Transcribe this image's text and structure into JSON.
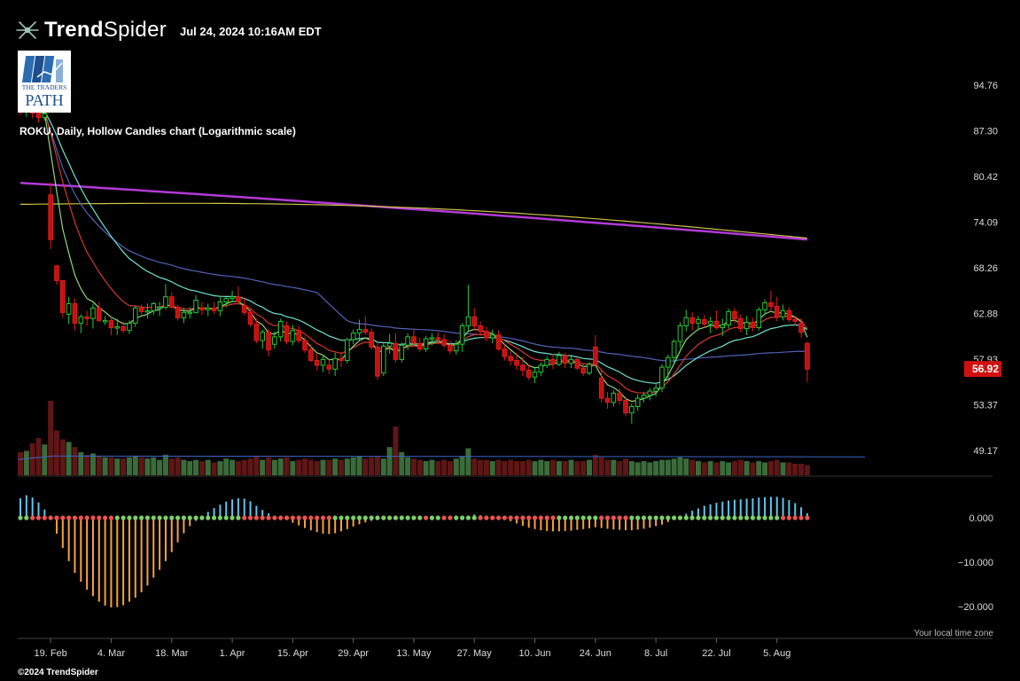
{
  "header": {
    "brand_bold": "Trend",
    "brand_light": "Spider",
    "timestamp": "Jul 24, 2024 10:16AM EDT",
    "logo_line1": "THE TRADERS",
    "logo_line2": "PATH",
    "logo_icon": "books-icon"
  },
  "chart_data": {
    "type": "candlestick",
    "title": "ROKU, Daily, Hollow Candles chart (Logarithmic scale)",
    "y_scale": "log",
    "price_axis_labels": [
      "94.76",
      "87.30",
      "80.42",
      "74.09",
      "68.26",
      "62.88",
      "57.93",
      "53.37",
      "49.17"
    ],
    "last_price": "56.92",
    "x_tick_labels": [
      "19. Feb",
      "4. Mar",
      "18. Mar",
      "1. Apr",
      "15. Apr",
      "29. Apr",
      "13. May",
      "27. May",
      "10. Jun",
      "24. Jun",
      "8. Jul",
      "22. Jul",
      "5. Aug"
    ],
    "start_date": "2024-02-12",
    "candles": [
      [
        91.2,
        92.5,
        89.8,
        90.5
      ],
      [
        90.5,
        92.8,
        89.5,
        91.8
      ],
      [
        91.8,
        92.6,
        89.3,
        90.1
      ],
      [
        90.1,
        91.2,
        88.6,
        89.4
      ],
      [
        89.4,
        90.9,
        88.9,
        90.0
      ],
      [
        77.8,
        79.5,
        70.6,
        71.8
      ],
      [
        68.5,
        68.6,
        66.2,
        66.7
      ],
      [
        66.7,
        66.8,
        62.4,
        63.0
      ],
      [
        62.8,
        64.8,
        61.7,
        64.0
      ],
      [
        64.0,
        64.6,
        61.0,
        61.8
      ],
      [
        61.8,
        62.8,
        60.7,
        62.5
      ],
      [
        62.5,
        63.2,
        61.5,
        62.3
      ],
      [
        62.3,
        64.0,
        61.2,
        63.5
      ],
      [
        63.5,
        64.2,
        61.9,
        62.1
      ],
      [
        62.1,
        62.6,
        61.6,
        62.1
      ],
      [
        62.1,
        62.6,
        60.5,
        61.3
      ],
      [
        61.3,
        62.3,
        60.5,
        61.4
      ],
      [
        61.4,
        62.0,
        60.7,
        61.0
      ],
      [
        61.0,
        62.1,
        60.6,
        61.8
      ],
      [
        61.8,
        63.8,
        61.4,
        63.5
      ],
      [
        63.5,
        63.9,
        62.6,
        63.1
      ],
      [
        63.1,
        64.0,
        62.3,
        63.2
      ],
      [
        63.2,
        64.2,
        62.7,
        64.0
      ],
      [
        63.6,
        64.2,
        62.6,
        63.6
      ],
      [
        63.6,
        66.3,
        63.3,
        64.8
      ],
      [
        64.8,
        65.3,
        63.4,
        63.6
      ],
      [
        63.6,
        63.9,
        62.1,
        62.4
      ],
      [
        62.4,
        63.5,
        61.8,
        63.0
      ],
      [
        63.0,
        63.6,
        62.3,
        63.0
      ],
      [
        63.0,
        65.0,
        62.9,
        64.4
      ],
      [
        63.5,
        64.2,
        62.7,
        63.3
      ],
      [
        63.3,
        64.0,
        62.6,
        63.5
      ],
      [
        63.5,
        64.2,
        62.8,
        63.2
      ],
      [
        63.2,
        64.9,
        62.6,
        64.2
      ],
      [
        64.2,
        64.8,
        63.6,
        64.6
      ],
      [
        64.6,
        65.5,
        64.2,
        64.8
      ],
      [
        64.8,
        66.0,
        64.1,
        64.2
      ],
      [
        63.8,
        64.7,
        62.7,
        63.0
      ],
      [
        63.0,
        63.5,
        61.4,
        61.7
      ],
      [
        61.7,
        62.3,
        59.6,
        59.9
      ],
      [
        59.9,
        61.1,
        59.0,
        60.8
      ],
      [
        60.8,
        61.2,
        58.2,
        58.9
      ],
      [
        59.5,
        60.9,
        59.0,
        60.3
      ],
      [
        60.3,
        62.3,
        59.8,
        62.0
      ],
      [
        61.5,
        62.0,
        59.5,
        59.8
      ],
      [
        59.8,
        61.6,
        59.4,
        61.0
      ],
      [
        61.0,
        61.5,
        59.6,
        59.9
      ],
      [
        59.9,
        60.3,
        58.6,
        58.9
      ],
      [
        58.9,
        59.5,
        57.6,
        57.8
      ],
      [
        57.8,
        58.5,
        56.8,
        57.3
      ],
      [
        57.3,
        58.4,
        56.6,
        57.9
      ],
      [
        57.3,
        57.9,
        56.4,
        56.9
      ],
      [
        56.9,
        58.6,
        56.2,
        58.0
      ],
      [
        58.0,
        58.7,
        57.1,
        57.8
      ],
      [
        57.8,
        60.2,
        57.5,
        60.0
      ],
      [
        60.0,
        61.1,
        59.5,
        60.7
      ],
      [
        60.7,
        62.2,
        59.9,
        61.1
      ],
      [
        61.1,
        62.6,
        60.5,
        60.8
      ],
      [
        60.8,
        61.2,
        58.9,
        59.2
      ],
      [
        59.2,
        59.7,
        55.8,
        56.2
      ],
      [
        56.5,
        59.6,
        56.2,
        59.3
      ],
      [
        59.3,
        60.6,
        58.5,
        59.6
      ],
      [
        59.6,
        60.7,
        57.6,
        57.9
      ],
      [
        57.9,
        59.7,
        57.6,
        59.4
      ],
      [
        59.4,
        60.7,
        58.9,
        60.3
      ],
      [
        60.3,
        61.2,
        59.2,
        59.6
      ],
      [
        59.6,
        60.2,
        58.7,
        59.0
      ],
      [
        59.0,
        60.4,
        58.7,
        60.1
      ],
      [
        60.1,
        60.7,
        59.4,
        60.2
      ],
      [
        60.2,
        60.8,
        59.5,
        60.0
      ],
      [
        60.0,
        60.6,
        59.1,
        59.4
      ],
      [
        59.4,
        59.9,
        58.5,
        58.8
      ],
      [
        58.8,
        59.9,
        58.4,
        59.5
      ],
      [
        59.5,
        61.8,
        58.7,
        61.5
      ],
      [
        61.5,
        66.2,
        61.0,
        62.5
      ],
      [
        62.5,
        63.5,
        61.0,
        61.5
      ],
      [
        61.5,
        62.0,
        60.4,
        60.9
      ],
      [
        60.9,
        61.4,
        59.8,
        60.2
      ],
      [
        60.2,
        61.1,
        59.6,
        60.5
      ],
      [
        60.5,
        61.0,
        58.8,
        59.0
      ],
      [
        59.0,
        59.5,
        57.8,
        58.2
      ],
      [
        58.2,
        58.8,
        57.3,
        57.8
      ],
      [
        57.8,
        58.6,
        56.8,
        57.3
      ],
      [
        57.3,
        58.2,
        56.2,
        56.8
      ],
      [
        56.8,
        57.4,
        55.8,
        56.1
      ],
      [
        56.1,
        57.0,
        55.5,
        56.6
      ],
      [
        56.6,
        57.6,
        56.2,
        57.3
      ],
      [
        57.3,
        58.2,
        57.0,
        57.9
      ],
      [
        57.9,
        58.5,
        56.9,
        57.4
      ],
      [
        57.4,
        58.7,
        57.2,
        58.3
      ],
      [
        58.3,
        58.6,
        57.0,
        57.5
      ],
      [
        57.5,
        58.4,
        57.0,
        57.9
      ],
      [
        57.9,
        58.3,
        56.8,
        57.0
      ],
      [
        57.0,
        57.5,
        56.2,
        56.5
      ],
      [
        56.5,
        57.6,
        56.3,
        57.4
      ],
      [
        59.2,
        60.5,
        57.2,
        57.4
      ],
      [
        56.0,
        56.8,
        53.6,
        54.0
      ],
      [
        54.0,
        54.6,
        53.0,
        53.6
      ],
      [
        53.6,
        54.8,
        53.2,
        54.5
      ],
      [
        54.5,
        55.0,
        53.4,
        53.8
      ],
      [
        53.8,
        54.2,
        52.3,
        52.6
      ],
      [
        52.6,
        53.5,
        51.6,
        53.2
      ],
      [
        53.2,
        54.4,
        52.8,
        54.0
      ],
      [
        54.0,
        54.6,
        53.6,
        54.3
      ],
      [
        54.3,
        55.0,
        53.8,
        54.7
      ],
      [
        54.7,
        55.4,
        54.2,
        55.0
      ],
      [
        55.0,
        57.4,
        54.6,
        57.1
      ],
      [
        57.1,
        58.4,
        56.0,
        58.1
      ],
      [
        58.1,
        60.0,
        57.4,
        59.8
      ],
      [
        59.8,
        61.9,
        59.1,
        61.5
      ],
      [
        61.5,
        63.3,
        60.9,
        62.4
      ],
      [
        62.4,
        63.0,
        61.0,
        61.8
      ],
      [
        61.8,
        62.6,
        61.0,
        62.2
      ],
      [
        62.2,
        62.7,
        61.3,
        61.7
      ],
      [
        61.7,
        62.5,
        60.7,
        62.0
      ],
      [
        62.0,
        63.2,
        61.1,
        61.3
      ],
      [
        61.3,
        62.3,
        60.4,
        61.6
      ],
      [
        61.6,
        63.4,
        61.2,
        63.1
      ],
      [
        63.1,
        63.5,
        61.8,
        62.3
      ],
      [
        62.3,
        62.8,
        60.8,
        61.2
      ],
      [
        61.2,
        62.6,
        60.5,
        61.9
      ],
      [
        61.9,
        62.4,
        60.9,
        61.3
      ],
      [
        61.3,
        63.6,
        61.0,
        63.3
      ],
      [
        63.3,
        64.5,
        62.7,
        64.1
      ],
      [
        64.1,
        65.5,
        63.2,
        63.7
      ],
      [
        63.7,
        64.8,
        62.0,
        62.5
      ],
      [
        62.5,
        63.9,
        62.1,
        63.2
      ],
      [
        63.2,
        63.6,
        61.9,
        62.2
      ],
      [
        62.2,
        62.6,
        61.5,
        62.0
      ],
      [
        61.8,
        62.3,
        60.2,
        60.8
      ],
      [
        59.6,
        59.8,
        55.6,
        56.9
      ]
    ],
    "volume": [
      18,
      19,
      25,
      29,
      24,
      58,
      35,
      28,
      26,
      22,
      18,
      16,
      17,
      15,
      14,
      14,
      13,
      13,
      14,
      15,
      14,
      13,
      14,
      12,
      16,
      13,
      14,
      12,
      11,
      12,
      11,
      12,
      10,
      11,
      13,
      12,
      11,
      12,
      13,
      15,
      12,
      14,
      12,
      13,
      14,
      11,
      12,
      13,
      12,
      11,
      12,
      12,
      13,
      12,
      13,
      14,
      15,
      13,
      14,
      15,
      13,
      22,
      38,
      18,
      14,
      13,
      12,
      11,
      12,
      11,
      12,
      11,
      13,
      15,
      21,
      13,
      12,
      12,
      11,
      12,
      11,
      12,
      11,
      11,
      12,
      11,
      12,
      11,
      12,
      11,
      11,
      12,
      11,
      11,
      12,
      16,
      14,
      12,
      12,
      11,
      13,
      11,
      10,
      11,
      10,
      11,
      12,
      12,
      13,
      14,
      13,
      12,
      11,
      10,
      11,
      10,
      11,
      10,
      11,
      12,
      11,
      10,
      11,
      10,
      11,
      12,
      10,
      10,
      9,
      9,
      8
    ],
    "volume_avg": 15,
    "macd_y_labels": [
      "0.000",
      "−10.000",
      "−20.000"
    ],
    "macd_range": [
      -24.5,
      6.8
    ],
    "macd_histogram": [
      5.2,
      6.0,
      5.4,
      4.1,
      2.2,
      -0.5,
      -4.2,
      -8.0,
      -11.5,
      -14.6,
      -17.0,
      -19.1,
      -20.8,
      -22.3,
      -23.3,
      -23.8,
      -23.7,
      -23.2,
      -22.3,
      -21.2,
      -19.8,
      -18.0,
      -15.9,
      -13.8,
      -11.5,
      -9.1,
      -6.5,
      -4.1,
      -2.2,
      -0.8,
      0.6,
      1.6,
      2.6,
      3.5,
      4.3,
      4.9,
      5.2,
      5.1,
      4.4,
      3.2,
      2.1,
      1.2,
      0.4,
      -0.1,
      -0.6,
      -1.3,
      -2.0,
      -2.7,
      -3.3,
      -3.8,
      -4.2,
      -4.3,
      -4.1,
      -3.6,
      -3.0,
      -2.3,
      -1.7,
      -1.2,
      -0.8,
      -0.6,
      -0.5,
      -0.4,
      -0.4,
      -0.4,
      -0.3,
      -0.3,
      -0.2,
      -0.3,
      -0.2,
      -0.1,
      -0.2,
      -0.3,
      -0.2,
      -0.1,
      0.6,
      0.9,
      0.7,
      0.6,
      0.5,
      0.3,
      -0.3,
      -0.9,
      -1.5,
      -2.1,
      -2.6,
      -3.0,
      -3.3,
      -3.5,
      -3.6,
      -3.6,
      -3.5,
      -3.4,
      -3.2,
      -3.0,
      -2.8,
      -2.5,
      -2.7,
      -2.9,
      -3.1,
      -3.2,
      -3.3,
      -3.3,
      -3.1,
      -2.9,
      -2.6,
      -2.2,
      -1.8,
      -1.1,
      -0.4,
      0.3,
      1.1,
      1.9,
      2.5,
      3.2,
      3.6,
      4.0,
      4.3,
      4.6,
      4.8,
      4.9,
      5.1,
      5.2,
      5.4,
      5.5,
      5.6,
      5.6,
      5.3,
      4.7,
      3.9,
      2.8,
      1.2
    ],
    "colors": {
      "up": "#22c932",
      "down": "#e51b1b",
      "down_body": "#c41010",
      "ma_magenta": "#b33ad6",
      "ma_yellow": "#cfc24a",
      "ma_blue": "#5262b8",
      "ma_cyan": "#6fe3d2",
      "ma_red": "#d6372a",
      "ma_green": "#8fd67a",
      "vol_up": "#3a6b3a",
      "vol_down": "#5e1616",
      "vol_avg": "#3a66c8",
      "hist_pos": "#5ec6ee",
      "hist_neg": "#f7a23a",
      "dot_green": "#7ed06a",
      "dot_red": "#ef5350",
      "price_badge": "#d01010"
    }
  },
  "footer": {
    "timezone_note": "Your local time zone",
    "copyright": "©2024 TrendSpider"
  }
}
